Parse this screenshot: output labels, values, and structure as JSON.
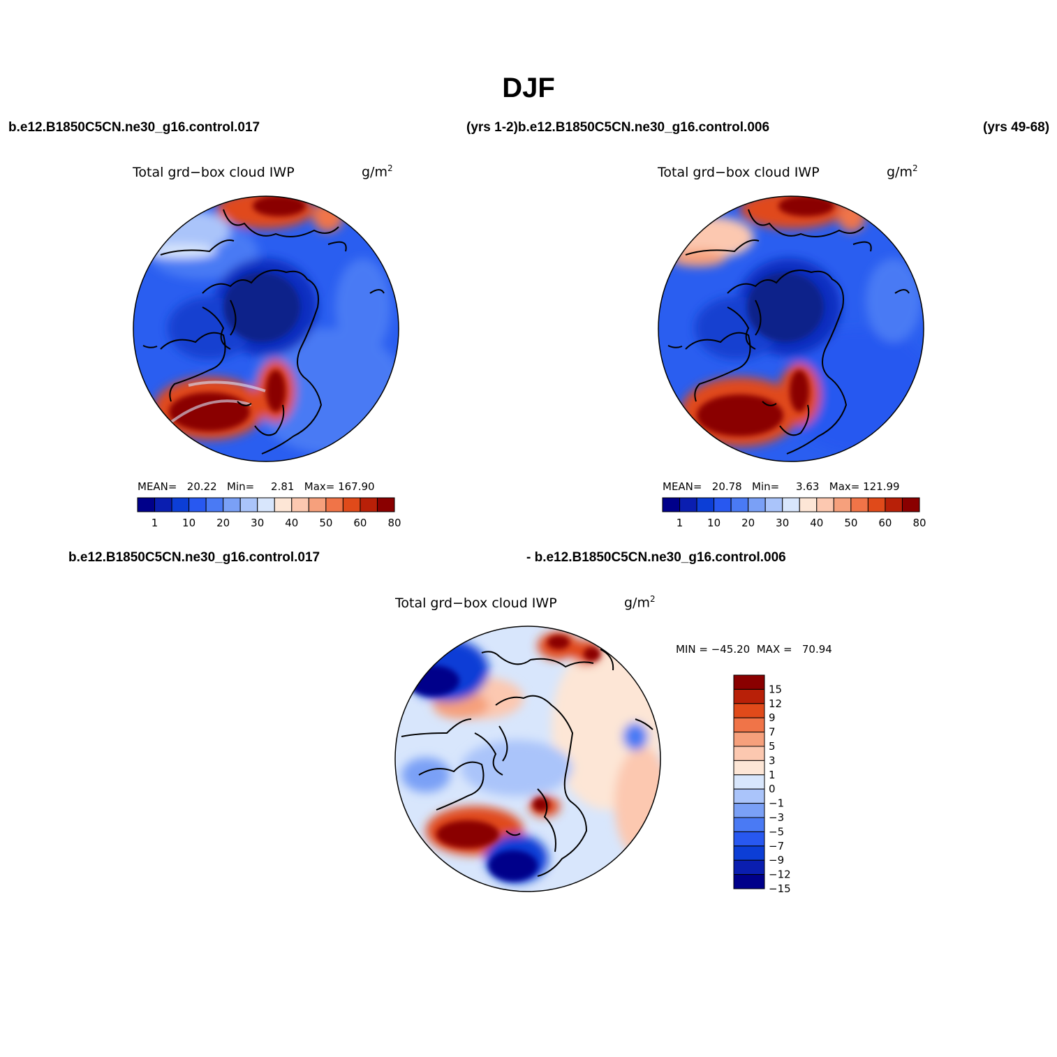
{
  "figure": {
    "title": "DJF",
    "case_labels": {
      "top_left": "b.e12.B1850C5CN.ne30_g16.control.017",
      "top_mid": "(yrs 1-2)b.e12.B1850C5CN.ne30_g16.control.006",
      "top_right": "(yrs 49-68)",
      "bottom_left": "b.e12.B1850C5CN.ne30_g16.control.017",
      "bottom_right": "- b.e12.B1850C5CN.ne30_g16.control.006"
    }
  },
  "panels": [
    {
      "id": "control-017",
      "title": "Total grd−box cloud IWP",
      "unit": "g/m",
      "unit_sup": "2",
      "stats": "MEAN=   20.22   Min=     2.81   Max= 167.90"
    },
    {
      "id": "control-006",
      "title": "Total grd−box cloud IWP",
      "unit": "g/m",
      "unit_sup": "2",
      "stats": "MEAN=   20.78   Min=     3.63   Max= 121.99"
    },
    {
      "id": "difference",
      "title": "Total grd−box cloud IWP",
      "unit": "g/m",
      "unit_sup": "2",
      "stats": "MIN = −45.20  MAX =   70.94"
    }
  ],
  "colors": {
    "abs_scale": [
      "#00008a",
      "#0a1eb0",
      "#0c3ed6",
      "#2858f0",
      "#4a7af4",
      "#7aa0f6",
      "#aac4fa",
      "#d8e6fc",
      "#fde6d6",
      "#fcc8b0",
      "#f6a07c",
      "#f07448",
      "#e04a1a",
      "#b82008",
      "#8a0000"
    ],
    "diff_scale": [
      "#00008a",
      "#0a1eb0",
      "#0c3ed6",
      "#2858f0",
      "#4a7af4",
      "#7aa0f6",
      "#aac4fa",
      "#d8e6fc",
      "#fde6d6",
      "#fcc8b0",
      "#f6a07c",
      "#f07448",
      "#e04a1a",
      "#b82008",
      "#8a0000"
    ]
  },
  "chart_data": [
    {
      "type": "heatmap",
      "title": "Total grd−box cloud IWP",
      "units": "g/m2",
      "projection": "north-polar stereographic",
      "mean": 20.22,
      "min": 2.81,
      "max": 167.9,
      "colorbar_levels": [
        1,
        5,
        10,
        15,
        20,
        25,
        30,
        35,
        40,
        45,
        50,
        55,
        60,
        70,
        80
      ],
      "colorbar_tick_labels": [
        "1",
        "10",
        "20",
        "30",
        "40",
        "50",
        "60",
        "80"
      ],
      "colorbar_orientation": "horizontal"
    },
    {
      "type": "heatmap",
      "title": "Total grd−box cloud IWP",
      "units": "g/m2",
      "projection": "north-polar stereographic",
      "mean": 20.78,
      "min": 3.63,
      "max": 121.99,
      "colorbar_levels": [
        1,
        5,
        10,
        15,
        20,
        25,
        30,
        35,
        40,
        45,
        50,
        55,
        60,
        70,
        80
      ],
      "colorbar_tick_labels": [
        "1",
        "10",
        "20",
        "30",
        "40",
        "50",
        "60",
        "80"
      ],
      "colorbar_orientation": "horizontal"
    },
    {
      "type": "heatmap",
      "title": "Total grd−box cloud IWP",
      "units": "g/m2",
      "projection": "north-polar stereographic",
      "min": -45.2,
      "max": 70.94,
      "colorbar_levels": [
        -15,
        -12,
        -9,
        -7,
        -5,
        -3,
        -1,
        0,
        1,
        3,
        5,
        7,
        9,
        12,
        15
      ],
      "colorbar_tick_labels": [
        "15",
        "12",
        "9",
        "7",
        "5",
        "3",
        "1",
        "0",
        "−1",
        "−3",
        "−5",
        "−7",
        "−9",
        "−12",
        "−15"
      ],
      "colorbar_orientation": "vertical"
    }
  ]
}
